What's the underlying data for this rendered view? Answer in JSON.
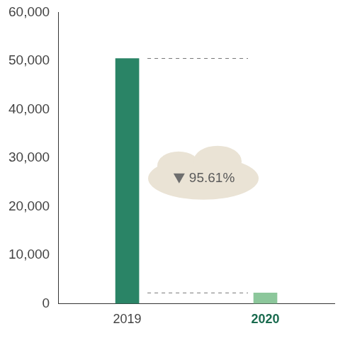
{
  "chart_data": {
    "type": "bar",
    "categories": [
      "2019",
      "2020"
    ],
    "values": [
      50500,
      2200
    ],
    "colors": [
      "#2a8466",
      "#8cc79b"
    ],
    "ylim": [
      0,
      60000
    ],
    "yticks": [
      0,
      {
        "value": 10000,
        "label": "10,000"
      },
      {
        "value": 20000,
        "label": "20,000"
      },
      {
        "value": 30000,
        "label": "30,000"
      },
      {
        "value": 40000,
        "label": "40,000"
      },
      {
        "value": 50000,
        "label": "50,000"
      },
      {
        "value": 60000,
        "label": "60,000"
      }
    ],
    "annotation": "95.61%",
    "grid": false
  }
}
